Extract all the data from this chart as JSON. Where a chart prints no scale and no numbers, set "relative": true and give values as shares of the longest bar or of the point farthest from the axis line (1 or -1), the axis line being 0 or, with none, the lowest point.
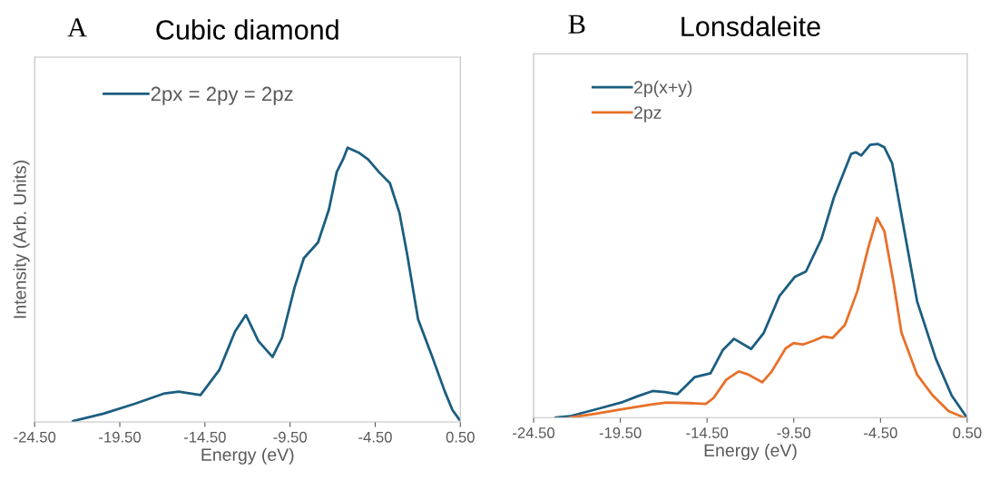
{
  "chart_data": [
    {
      "type": "line",
      "title": "Cubic diamond",
      "annotations": [
        "A"
      ],
      "xlabel": "Energy (eV)",
      "ylabel": "Intensity (Arb. Units)",
      "relative": true,
      "tick_labels": "x",
      "legend": "top left",
      "grid": false,
      "marker": "none",
      "line_style": "solid",
      "xlim": [
        -24.5,
        0.5
      ],
      "xticks": [
        {
          "value": -24.5,
          "label": "-24.50"
        },
        {
          "value": -19.5,
          "label": "-19.50"
        },
        {
          "value": -14.5,
          "label": "-14.50"
        },
        {
          "value": -9.5,
          "label": "-9.50"
        },
        {
          "value": -4.5,
          "label": "-4.50"
        },
        {
          "value": 0.5,
          "label": "0.50"
        }
      ],
      "series": [
        {
          "name": "2px = 2py = 2pz",
          "color": "#1b5e80",
          "x": [
            -22.26,
            -20.46,
            -18.62,
            -16.87,
            -16.04,
            -14.76,
            -13.65,
            -12.73,
            -12.09,
            -11.36,
            -10.53,
            -9.98,
            -9.24,
            -8.69,
            -7.86,
            -7.22,
            -6.76,
            -6.39,
            -6.12,
            -5.47,
            -4.92,
            -4.28,
            -3.64,
            -3.08,
            -2.63,
            -1.98,
            -1.15,
            -0.42,
            0.04,
            0.46
          ],
          "values": [
            0.003,
            0.03,
            0.066,
            0.104,
            0.11,
            0.098,
            0.19,
            0.33,
            0.39,
            0.295,
            0.237,
            0.306,
            0.489,
            0.597,
            0.654,
            0.774,
            0.911,
            0.957,
            1.0,
            0.982,
            0.957,
            0.911,
            0.871,
            0.763,
            0.614,
            0.374,
            0.237,
            0.112,
            0.043,
            0.007
          ]
        }
      ]
    },
    {
      "type": "line",
      "title": "Lonsdaleite",
      "annotations": [
        "B"
      ],
      "xlabel": "Energy (eV)",
      "relative": true,
      "tick_labels": "x",
      "legend": "top left",
      "grid": false,
      "marker": "none",
      "line_style": "solid",
      "xlim": [
        -24.5,
        0.5
      ],
      "xticks": [
        {
          "value": -24.5,
          "label": "-24.50"
        },
        {
          "value": -19.5,
          "label": "-19.50"
        },
        {
          "value": -14.5,
          "label": "-14.50"
        },
        {
          "value": -9.5,
          "label": "-9.50"
        },
        {
          "value": -4.5,
          "label": "-4.50"
        },
        {
          "value": 0.5,
          "label": "0.50"
        }
      ],
      "series": [
        {
          "name": "2p(x+y)",
          "color": "#1b5e80",
          "x": [
            -23.24,
            -22.42,
            -20.98,
            -19.36,
            -18.46,
            -17.64,
            -16.92,
            -16.2,
            -15.21,
            -14.3,
            -13.58,
            -12.95,
            -11.96,
            -11.23,
            -10.33,
            -9.43,
            -8.8,
            -7.9,
            -7.18,
            -6.19,
            -5.92,
            -5.61,
            -5.1,
            -4.65,
            -4.28,
            -3.83,
            -3.29,
            -2.39,
            -1.31,
            -0.4,
            0.46
          ],
          "values": [
            0,
            0.005,
            0.029,
            0.057,
            0.079,
            0.097,
            0.093,
            0.086,
            0.148,
            0.162,
            0.248,
            0.288,
            0.251,
            0.31,
            0.444,
            0.515,
            0.534,
            0.654,
            0.806,
            0.964,
            0.97,
            0.958,
            0.997,
            1.0,
            0.988,
            0.93,
            0.74,
            0.425,
            0.215,
            0.081,
            0.002
          ]
        },
        {
          "name": "2pz",
          "color": "#e8702a",
          "x": [
            -22.42,
            -20.98,
            -19.36,
            -17.74,
            -16.84,
            -15.56,
            -14.57,
            -14.12,
            -13.4,
            -12.68,
            -12.14,
            -11.32,
            -10.79,
            -9.97,
            -9.52,
            -8.98,
            -8.35,
            -7.81,
            -7.27,
            -6.55,
            -5.83,
            -5.19,
            -4.7,
            -4.28,
            -3.74,
            -3.29,
            -2.39,
            -1.49,
            -0.58,
            0.32
          ],
          "values": [
            0,
            0.014,
            0.031,
            0.048,
            0.055,
            0.053,
            0.05,
            0.072,
            0.138,
            0.169,
            0.158,
            0.129,
            0.167,
            0.253,
            0.272,
            0.267,
            0.281,
            0.296,
            0.291,
            0.339,
            0.463,
            0.625,
            0.73,
            0.682,
            0.491,
            0.31,
            0.157,
            0.081,
            0.024,
            0
          ]
        }
      ]
    }
  ]
}
